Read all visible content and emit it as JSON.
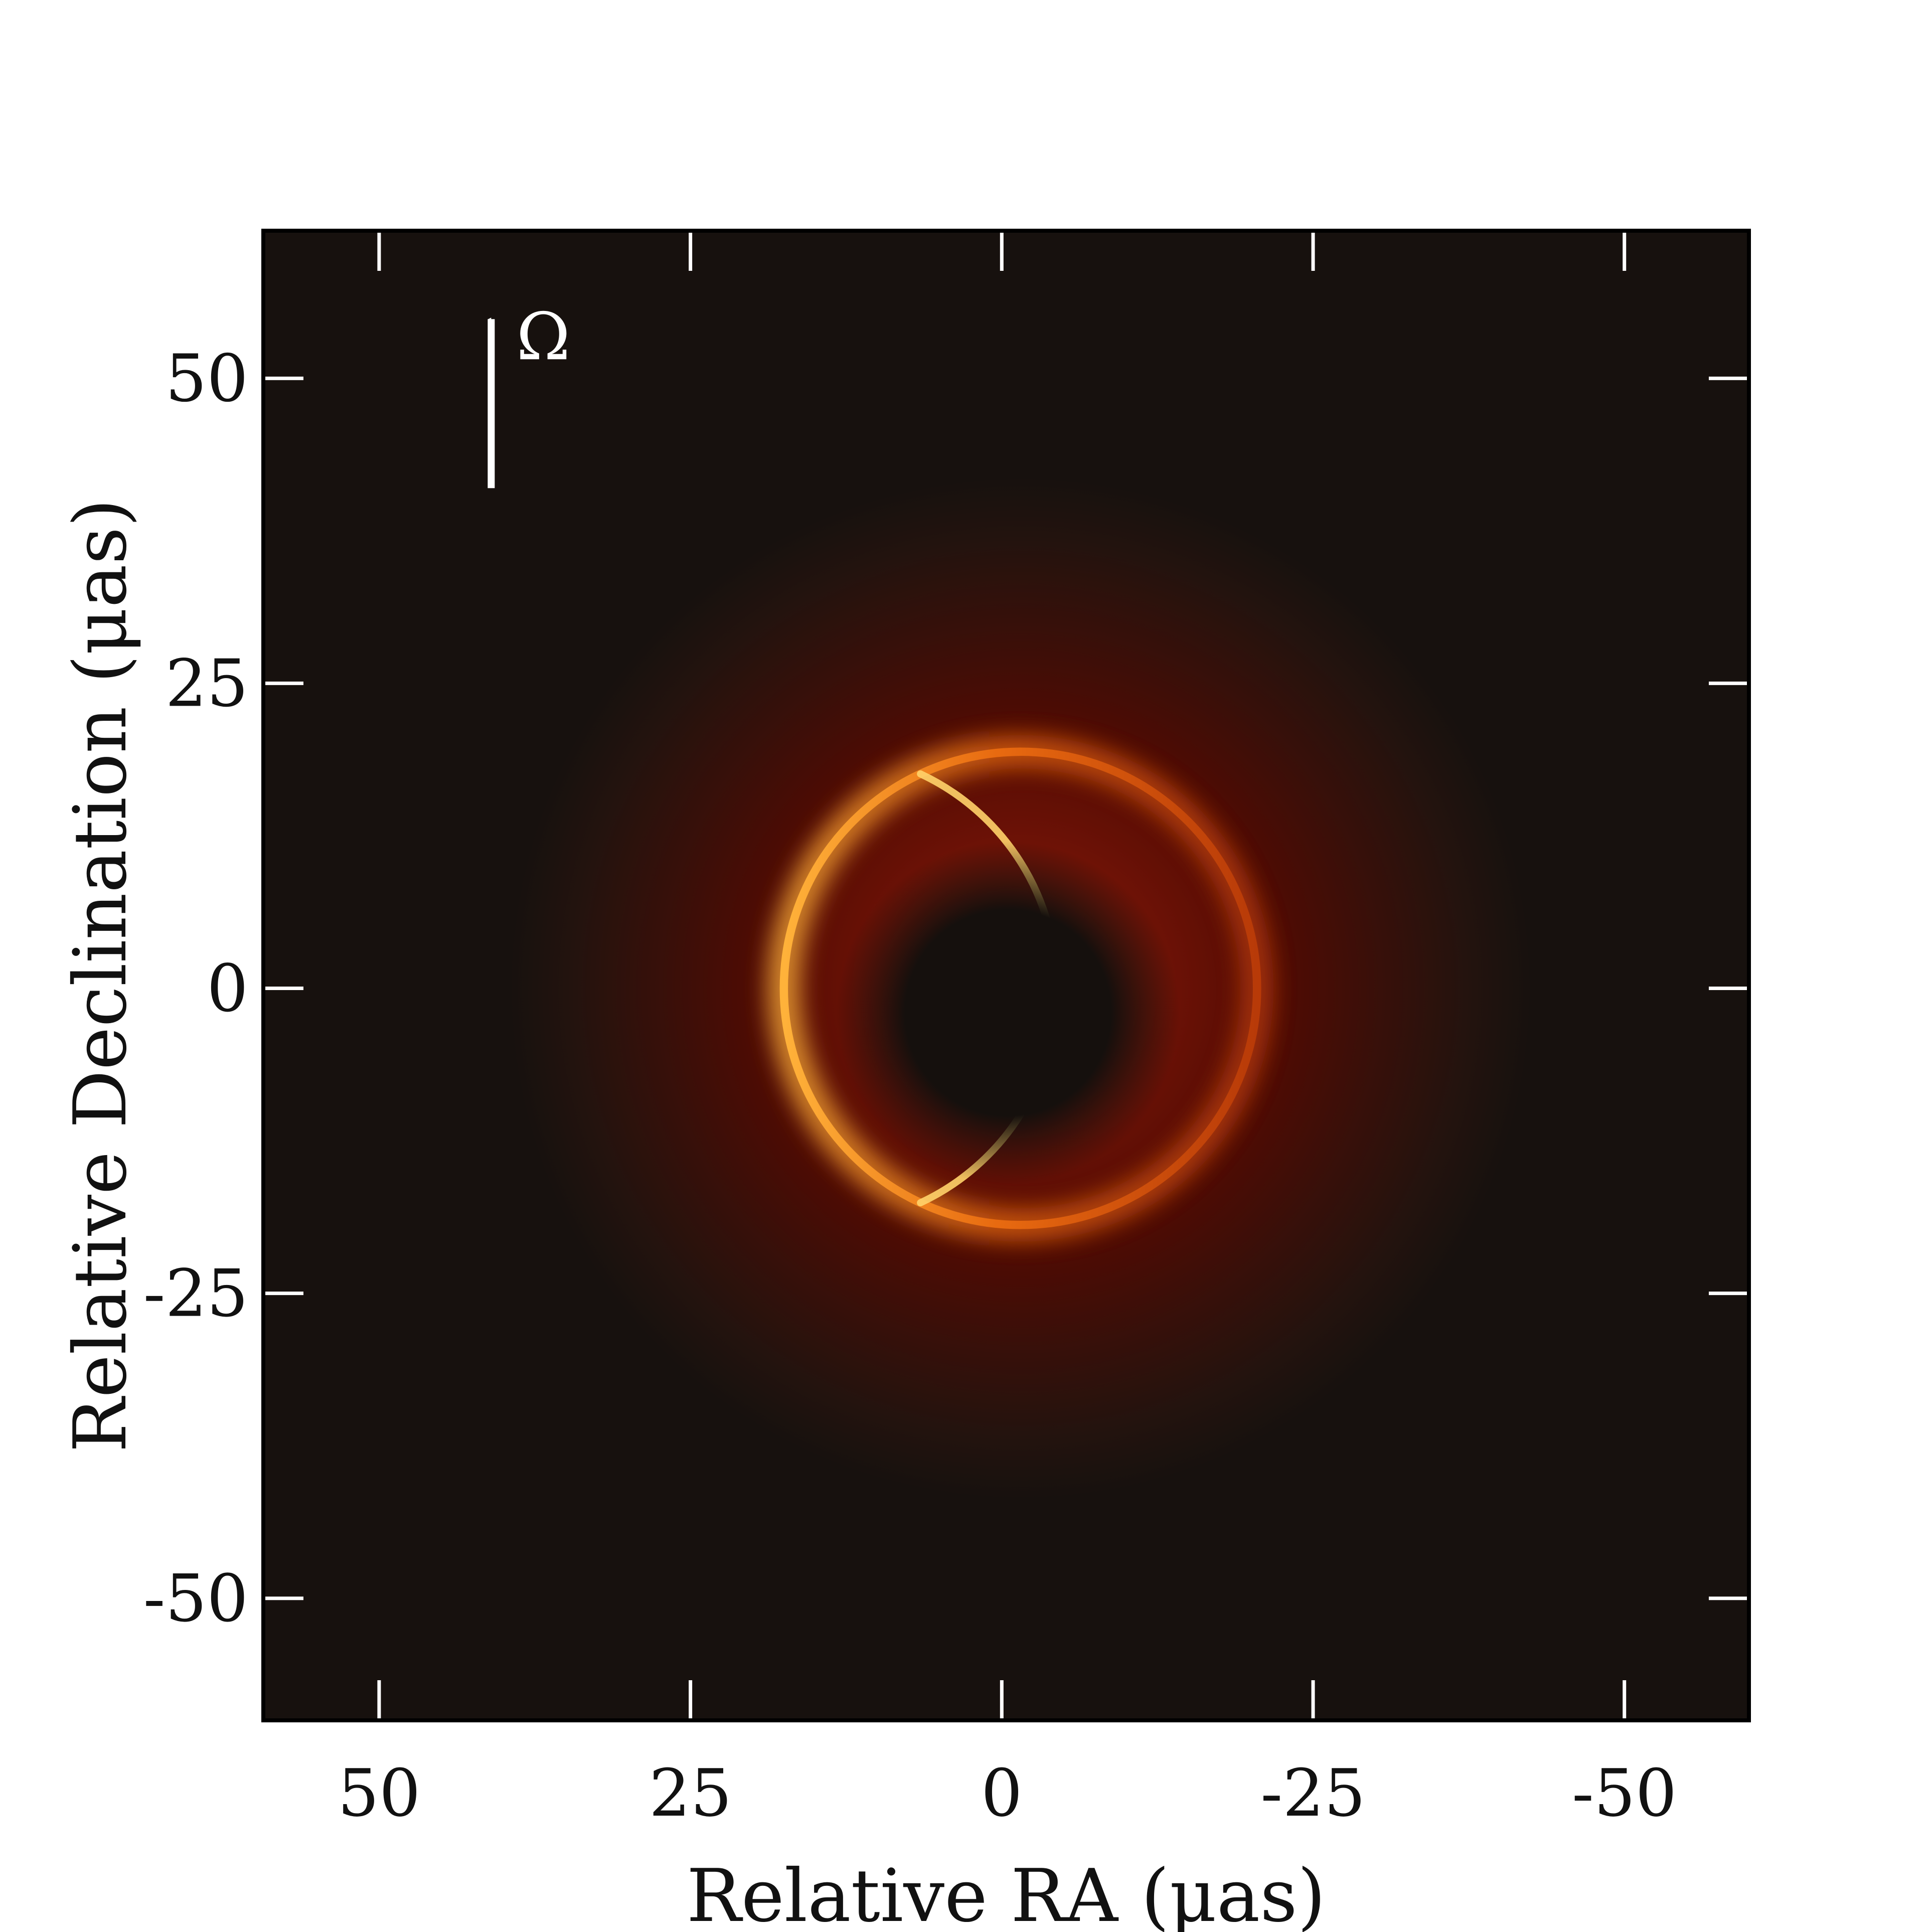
{
  "chart_data": {
    "type": "heatmap",
    "title": "",
    "xlabel": "Relative RA (μas)",
    "ylabel": "Relative Declination (μas)",
    "xlim": [
      59.3,
      -60.0
    ],
    "ylim": [
      -60.0,
      62.1
    ],
    "x_ticks": [
      50,
      25,
      0,
      -25,
      -50
    ],
    "x_tick_labels": [
      "50",
      "25",
      "0",
      "-25",
      "-50"
    ],
    "y_ticks": [
      50,
      25,
      0,
      -25,
      -50
    ],
    "y_tick_labels": [
      "50",
      "25",
      "0",
      "-25",
      "-50"
    ],
    "grid": false,
    "colormap": "afmhot",
    "colors": {
      "background": "#17110e",
      "shadow": "#15100d",
      "ring": "#ff9a20",
      "ring_peak": "#fff0b0",
      "tick": "#ffffff",
      "frame": "#000000"
    },
    "shadow": {
      "center": [
        -0.5,
        -2.0
      ],
      "radius": 9.5
    },
    "photon_ring": {
      "center": [
        -1.5,
        0.0
      ],
      "radius": 19.0,
      "brightest_side": "left"
    },
    "diffuse_emission": {
      "outer_radius": 41
    },
    "annotation": {
      "symbol": "Ω",
      "arrow_from": [
        41.0,
        41.0
      ],
      "arrow_to": [
        41.0,
        56.5
      ]
    }
  }
}
